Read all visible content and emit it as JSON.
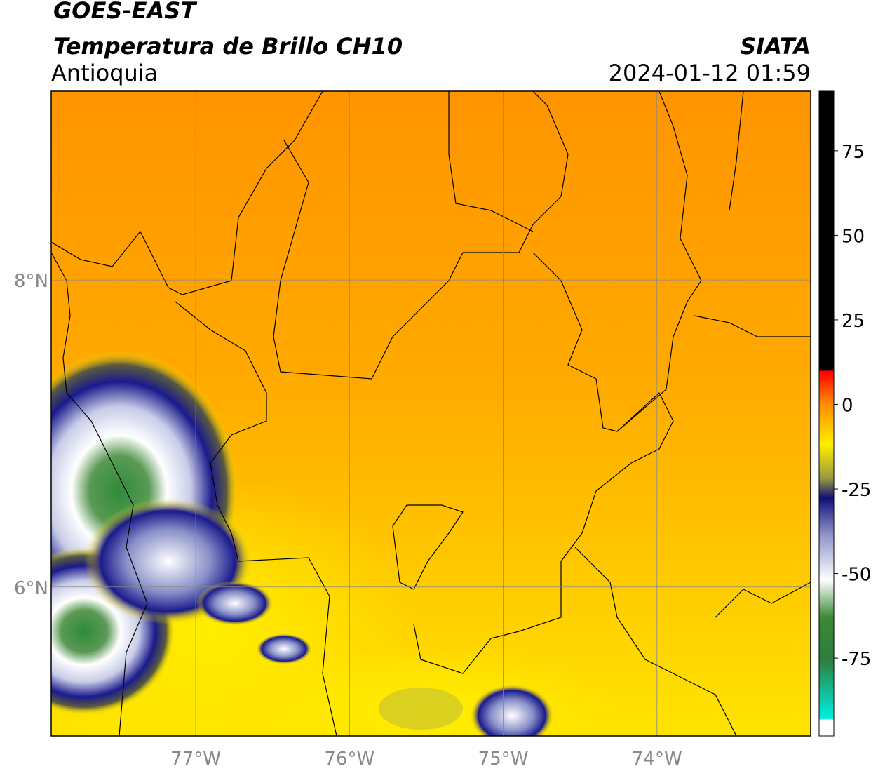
{
  "header": {
    "satellite": "GOES-EAST",
    "product": "Temperatura de Brillo CH10",
    "region": "Antioquia",
    "source": "SIATA",
    "datetime": "2024-01-12 01:59"
  },
  "map": {
    "lon_range": [
      -77.94,
      -73.0
    ],
    "lat_range": [
      5.03,
      9.23
    ],
    "lon_ticks": [
      {
        "value": -77,
        "label": "77°W"
      },
      {
        "value": -76,
        "label": "76°W"
      },
      {
        "value": -75,
        "label": "75°W"
      },
      {
        "value": -74,
        "label": "74°W"
      }
    ],
    "lat_ticks": [
      {
        "value": 8,
        "label": "8°N"
      },
      {
        "value": 6,
        "label": "6°N"
      }
    ]
  },
  "colorbar": {
    "range": [
      -98,
      92.6
    ],
    "ticks": [
      75,
      50,
      25,
      0,
      -25,
      -50,
      -75
    ]
  }
}
